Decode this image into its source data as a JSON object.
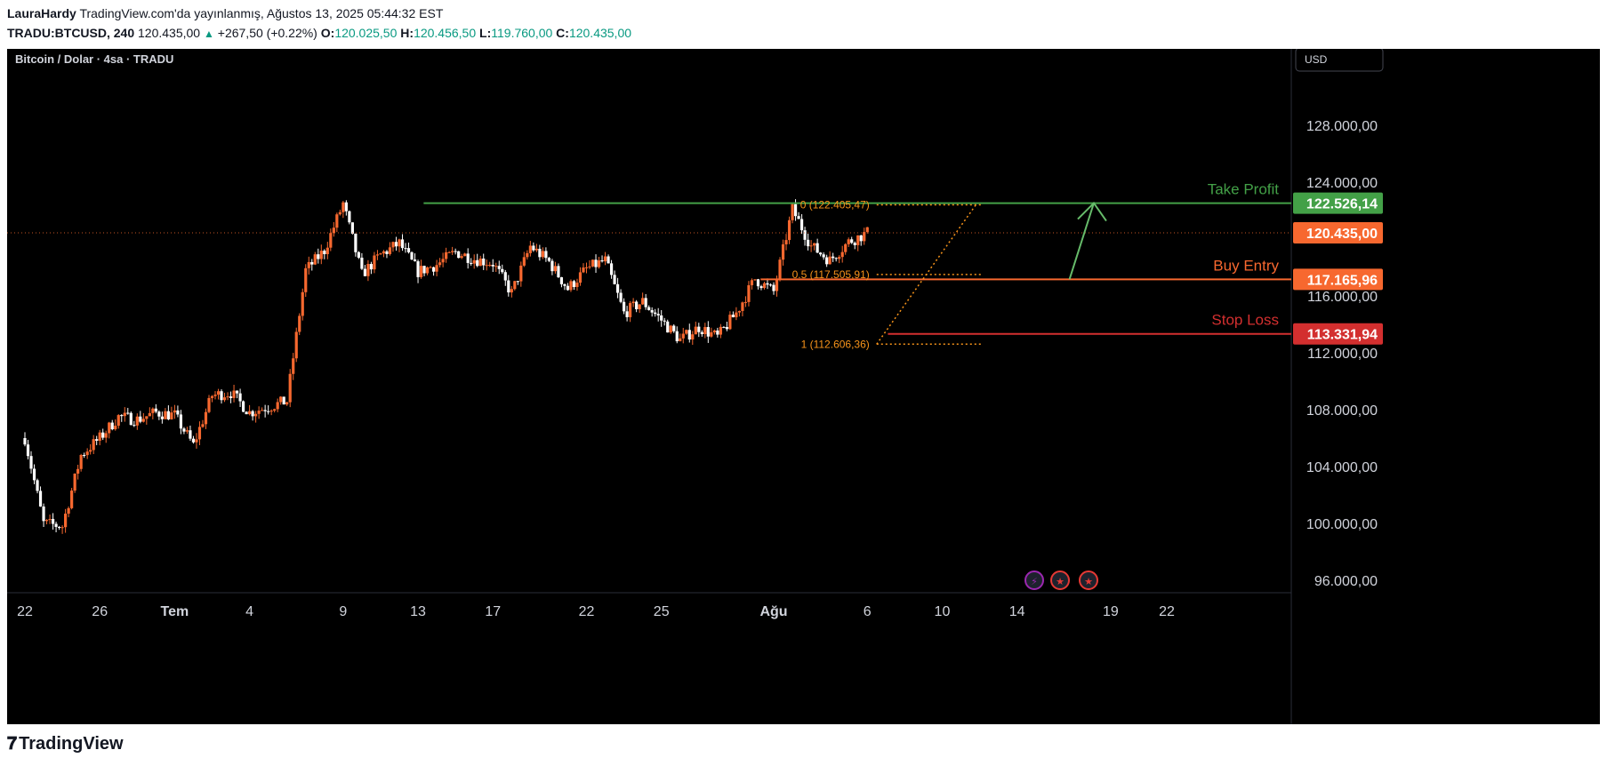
{
  "header": {
    "user": "LauraHardy",
    "published": "TradingView.com'da yayınlanmış, Ağustos 13, 2025 05:44:32 EST",
    "symbol": "TRADU:BTCUSD, 240",
    "last": "120.435,00",
    "change": "+267,50 (+0.22%)",
    "o_label": "O:",
    "o_value": "120.025,50",
    "h_label": "H:",
    "h_value": "120.456,50",
    "l_label": "L:",
    "l_value": "119.760,00",
    "c_label": "C:",
    "c_value": "120.435,00"
  },
  "colors": {
    "up": "#f7682f",
    "down": "#ffffff",
    "take_profit": "#43a047",
    "buy_entry": "#f7682f",
    "stop_loss": "#d32f2f",
    "fib": "#f7931a",
    "arrow": "#66bb6a"
  },
  "footer": {
    "brand": "TradingView"
  },
  "chart_data": {
    "type": "candlestick",
    "title": "Bitcoin / Dolar · 4sa · TRADU",
    "currency": "USD",
    "ylim": [
      95000,
      131000
    ],
    "y_ticks": [
      {
        "value": 96000,
        "label": "96.000,00"
      },
      {
        "value": 100000,
        "label": "100.000,00"
      },
      {
        "value": 104000,
        "label": "104.000,00"
      },
      {
        "value": 108000,
        "label": "108.000,00"
      },
      {
        "value": 112000,
        "label": "112.000,00"
      },
      {
        "value": 116000,
        "label": "116.000,00"
      },
      {
        "value": 124000,
        "label": "124.000,00"
      },
      {
        "value": 128000,
        "label": "128.000,00"
      }
    ],
    "x_ticks": [
      {
        "day": 0,
        "label": "22",
        "bold": false
      },
      {
        "day": 4,
        "label": "26",
        "bold": false
      },
      {
        "day": 8,
        "label": "Tem",
        "bold": true
      },
      {
        "day": 12,
        "label": "4",
        "bold": false
      },
      {
        "day": 17,
        "label": "9",
        "bold": false
      },
      {
        "day": 21,
        "label": "13",
        "bold": false
      },
      {
        "day": 25,
        "label": "17",
        "bold": false
      },
      {
        "day": 30,
        "label": "22",
        "bold": false
      },
      {
        "day": 34,
        "label": "25",
        "bold": false
      },
      {
        "day": 40,
        "label": "Ağu",
        "bold": true
      },
      {
        "day": 45,
        "label": "6",
        "bold": false
      },
      {
        "day": 49,
        "label": "10",
        "bold": false
      },
      {
        "day": 53,
        "label": "14",
        "bold": false
      },
      {
        "day": 58,
        "label": "19",
        "bold": false
      },
      {
        "day": 61,
        "label": "22",
        "bold": false
      }
    ],
    "anchors": [
      [
        0,
        106000
      ],
      [
        1,
        100000
      ],
      [
        2,
        99800
      ],
      [
        3,
        104800
      ],
      [
        4,
        106000
      ],
      [
        5,
        107500
      ],
      [
        6,
        107300
      ],
      [
        7,
        107800
      ],
      [
        8,
        107600
      ],
      [
        9,
        105500
      ],
      [
        10,
        109000
      ],
      [
        11,
        109200
      ],
      [
        12,
        107800
      ],
      [
        13,
        108200
      ],
      [
        14,
        108600
      ],
      [
        15,
        117800
      ],
      [
        16,
        119200
      ],
      [
        17,
        122500
      ],
      [
        18,
        117500
      ],
      [
        19,
        118900
      ],
      [
        20,
        119700
      ],
      [
        21,
        117700
      ],
      [
        22,
        118200
      ],
      [
        23,
        119100
      ],
      [
        24,
        118600
      ],
      [
        25,
        118300
      ],
      [
        26,
        116200
      ],
      [
        27,
        119500
      ],
      [
        28,
        118400
      ],
      [
        29,
        116500
      ],
      [
        30,
        117900
      ],
      [
        31,
        118500
      ],
      [
        32,
        114800
      ],
      [
        33,
        115600
      ],
      [
        34,
        114300
      ],
      [
        35,
        112900
      ],
      [
        36,
        113800
      ],
      [
        37,
        113100
      ],
      [
        38,
        114800
      ],
      [
        39,
        117200
      ],
      [
        40,
        116300
      ],
      [
        41,
        122100
      ],
      [
        42,
        119500
      ],
      [
        43,
        118500
      ],
      [
        44,
        119800
      ],
      [
        45,
        120435
      ]
    ],
    "levels": [
      {
        "name": "Take Profit",
        "value": 122526.14,
        "label": "122.526,14",
        "color_key": "take_profit"
      },
      {
        "name": "Buy Entry",
        "value": 117165.96,
        "label": "117.165,96",
        "color_key": "buy_entry"
      },
      {
        "name": "Stop Loss",
        "value": 113331.94,
        "label": "113.331,94",
        "color_key": "stop_loss"
      }
    ],
    "last_price": {
      "value": 120435,
      "label": "120.435,00"
    },
    "fib": [
      {
        "label": "0 (122.405,47)",
        "value": 122405.47
      },
      {
        "label": "0.5 (117.505,91)",
        "value": 117505.91
      },
      {
        "label": "1 (112.606,36)",
        "value": 112606.36
      }
    ]
  }
}
